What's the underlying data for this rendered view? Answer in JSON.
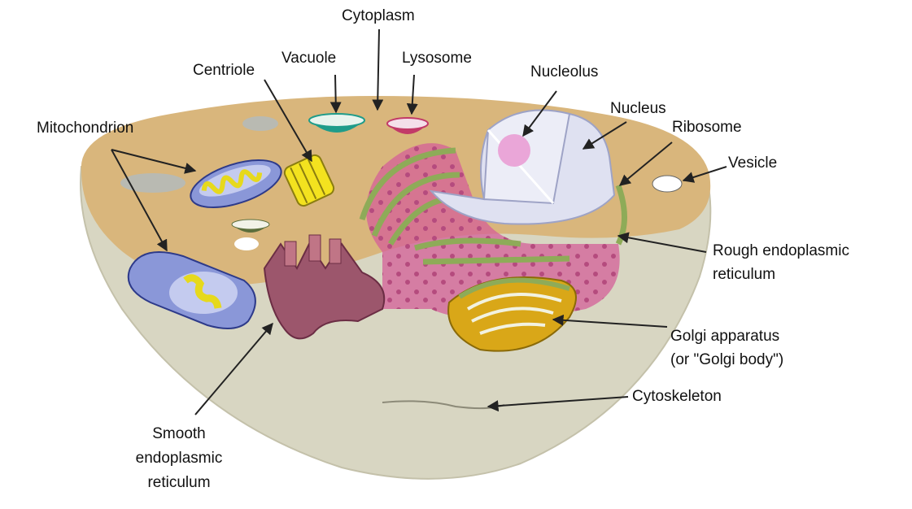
{
  "labels": {
    "cytoplasm": "Cytoplasm",
    "vacuole": "Vacuole",
    "lysosome": "Lysosome",
    "centriole": "Centriole",
    "nucleolus": "Nucleolus",
    "nucleus": "Nucleus",
    "ribosome": "Ribosome",
    "vesicle": "Vesicle",
    "mitochondrion": "Mitochondrion",
    "rough_er_1": "Rough endoplasmic",
    "rough_er_2": "reticulum",
    "golgi_1": "Golgi apparatus",
    "golgi_2": "(or \"Golgi body\")",
    "cytoskeleton": "Cytoskeleton",
    "smooth_er_1": "Smooth",
    "smooth_er_2": "endoplasmic",
    "smooth_er_3": "reticulum"
  },
  "colors": {
    "cytoplasm_top": "#d9b67c",
    "cell_body": "#d8d6c2",
    "vacuole": "#1f9c8a",
    "lysosome": "#c23a68",
    "centriole": "#f3e21f",
    "mitochondrion": "#8a97d8",
    "nucleus": "#dfe1f1",
    "nucleolus": "#eaa6d8",
    "rough_er": "#d45f98",
    "er_edge": "#8eab58",
    "smooth_er": "#9c566c",
    "golgi": "#d9a718"
  }
}
